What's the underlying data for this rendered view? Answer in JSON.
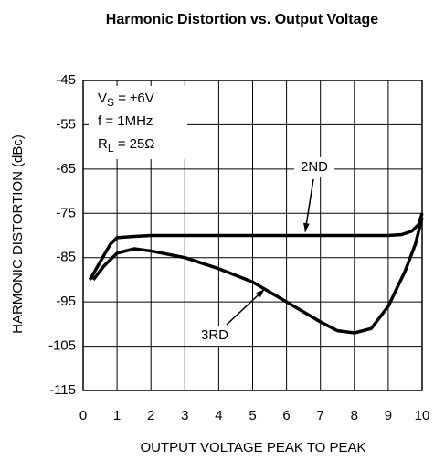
{
  "chart_data": {
    "type": "line",
    "title": "Harmonic Distortion vs. Output Voltage",
    "xlabel": "OUTPUT VOLTAGE PEAK TO PEAK",
    "ylabel": "HARMONIC DISTORTION (dBc)",
    "annotations": [
      {
        "text": "V",
        "sub": "S",
        "rest": " = ±6V"
      },
      {
        "text": "f = 1MHz"
      },
      {
        "text": "R",
        "sub": "L",
        "rest": " = 25Ω"
      }
    ],
    "xlim": [
      0,
      10
    ],
    "xticks": [
      0,
      1,
      2,
      3,
      4,
      5,
      6,
      7,
      8,
      9,
      10
    ],
    "ylim": [
      -115,
      -45
    ],
    "yticks": [
      -115,
      -105,
      -95,
      -85,
      -75,
      -65,
      -55,
      -45
    ],
    "grid": true,
    "series": [
      {
        "name": "2ND",
        "color": "#000000",
        "x": [
          0.2,
          0.5,
          0.8,
          1,
          1.5,
          2,
          3,
          5,
          7,
          8,
          9,
          9.4,
          9.7,
          9.9,
          10
        ],
        "values": [
          -90,
          -86,
          -82,
          -80.5,
          -80.2,
          -80,
          -80,
          -80,
          -80,
          -80,
          -80,
          -79.8,
          -79,
          -77.5,
          -75
        ]
      },
      {
        "name": "3RD",
        "color": "#000000",
        "x": [
          0.3,
          0.6,
          1,
          1.5,
          2,
          3,
          4,
          5,
          6,
          7,
          7.5,
          8,
          8.5,
          9,
          9.5,
          9.8,
          10
        ],
        "values": [
          -90,
          -87,
          -84,
          -83,
          -83.5,
          -85,
          -87.5,
          -90.5,
          -95,
          -99.5,
          -101.5,
          -102,
          -101,
          -96,
          -88,
          -82,
          -76
        ]
      }
    ]
  }
}
